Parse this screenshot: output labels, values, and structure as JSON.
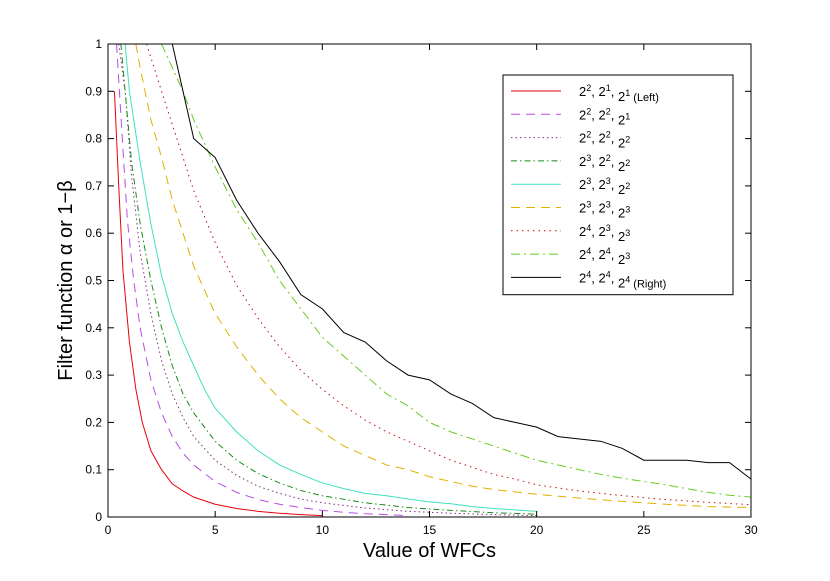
{
  "chart_data": {
    "type": "line",
    "title": "",
    "xlabel": "Value of WFCs",
    "ylabel": "Filter function α or 1−β",
    "xlim": [
      0,
      30
    ],
    "ylim": [
      0,
      1
    ],
    "x_ticks": [
      "0",
      "5",
      "10",
      "15",
      "20",
      "25",
      "30"
    ],
    "y_ticks": [
      "0",
      "0.1",
      "0.2",
      "0.3",
      "0.4",
      "0.5",
      "0.6",
      "0.7",
      "0.8",
      "0.9",
      "1"
    ],
    "grid": false,
    "legend_position": "top-right",
    "series": [
      {
        "name": "2^2, 2^1, 2^1 (Left)",
        "label_parts": [
          [
            "2",
            "2"
          ],
          [
            "2",
            "1"
          ],
          [
            "2",
            "1"
          ]
        ],
        "suffix": "(Left)",
        "color": "#e8000b",
        "dash": "",
        "points": [
          [
            0.3,
            0.9
          ],
          [
            0.5,
            0.7
          ],
          [
            0.7,
            0.52
          ],
          [
            1,
            0.37
          ],
          [
            1.3,
            0.27
          ],
          [
            1.6,
            0.2
          ],
          [
            2,
            0.14
          ],
          [
            2.5,
            0.1
          ],
          [
            3,
            0.07
          ],
          [
            3.5,
            0.055
          ],
          [
            4,
            0.042
          ],
          [
            5,
            0.027
          ],
          [
            6,
            0.018
          ],
          [
            7,
            0.012
          ],
          [
            8,
            0.008
          ],
          [
            9,
            0.005
          ],
          [
            10,
            0.003
          ]
        ]
      },
      {
        "name": "2^2, 2^2, 2^1",
        "label_parts": [
          [
            "2",
            "2"
          ],
          [
            "2",
            "2"
          ],
          [
            "2",
            "1"
          ]
        ],
        "suffix": "",
        "color": "#b84ee6",
        "dash": "9,6",
        "points": [
          [
            0.4,
            1.0
          ],
          [
            0.6,
            0.85
          ],
          [
            0.9,
            0.63
          ],
          [
            1.2,
            0.5
          ],
          [
            1.5,
            0.4
          ],
          [
            2,
            0.29
          ],
          [
            2.5,
            0.22
          ],
          [
            3,
            0.17
          ],
          [
            3.5,
            0.135
          ],
          [
            4,
            0.11
          ],
          [
            5,
            0.075
          ],
          [
            6,
            0.052
          ],
          [
            7,
            0.037
          ],
          [
            8,
            0.027
          ],
          [
            9,
            0.02
          ],
          [
            10,
            0.014
          ],
          [
            11,
            0.01
          ],
          [
            12,
            0.007
          ],
          [
            13,
            0.005
          ],
          [
            14,
            0.003
          ]
        ]
      },
      {
        "name": "2^2, 2^2, 2^2",
        "label_parts": [
          [
            "2",
            "2"
          ],
          [
            "2",
            "2"
          ],
          [
            "2",
            "2"
          ]
        ],
        "suffix": "",
        "color": "#7f2f7f",
        "dash": "1.5,3",
        "points": [
          [
            0.5,
            1.0
          ],
          [
            0.8,
            0.9
          ],
          [
            1.1,
            0.72
          ],
          [
            1.5,
            0.56
          ],
          [
            2,
            0.43
          ],
          [
            2.5,
            0.33
          ],
          [
            3,
            0.26
          ],
          [
            3.5,
            0.21
          ],
          [
            4,
            0.17
          ],
          [
            5,
            0.12
          ],
          [
            6,
            0.088
          ],
          [
            7,
            0.065
          ],
          [
            8,
            0.05
          ],
          [
            9,
            0.038
          ],
          [
            10,
            0.03
          ],
          [
            12,
            0.019
          ],
          [
            14,
            0.012
          ],
          [
            16,
            0.008
          ],
          [
            18,
            0.005
          ],
          [
            20,
            0.003
          ]
        ]
      },
      {
        "name": "2^3, 2^2, 2^2",
        "label_parts": [
          [
            "2",
            "3"
          ],
          [
            "2",
            "2"
          ],
          [
            "2",
            "2"
          ]
        ],
        "suffix": "",
        "color": "#1a8a1a",
        "dash": "6,3,1.5,3",
        "points": [
          [
            0.6,
            1.0
          ],
          [
            0.8,
            0.9
          ],
          [
            1.1,
            0.75
          ],
          [
            1.5,
            0.62
          ],
          [
            2,
            0.5
          ],
          [
            2.5,
            0.4
          ],
          [
            3,
            0.32
          ],
          [
            3.5,
            0.26
          ],
          [
            4,
            0.22
          ],
          [
            5,
            0.16
          ],
          [
            6,
            0.12
          ],
          [
            7,
            0.092
          ],
          [
            8,
            0.072
          ],
          [
            9,
            0.056
          ],
          [
            10,
            0.045
          ],
          [
            12,
            0.03
          ],
          [
            14,
            0.02
          ],
          [
            16,
            0.014
          ],
          [
            18,
            0.009
          ],
          [
            20,
            0.006
          ]
        ]
      },
      {
        "name": "2^3, 2^3, 2^2",
        "label_parts": [
          [
            "2",
            "3"
          ],
          [
            "2",
            "3"
          ],
          [
            "2",
            "2"
          ]
        ],
        "suffix": "",
        "color": "#40e0c0",
        "dash": "",
        "points": [
          [
            0.8,
            1.0
          ],
          [
            1,
            0.9
          ],
          [
            1.5,
            0.75
          ],
          [
            2,
            0.62
          ],
          [
            2.5,
            0.51
          ],
          [
            3,
            0.43
          ],
          [
            3.5,
            0.37
          ],
          [
            4,
            0.32
          ],
          [
            4.5,
            0.27
          ],
          [
            5,
            0.23
          ],
          [
            6,
            0.18
          ],
          [
            7,
            0.14
          ],
          [
            8,
            0.11
          ],
          [
            9,
            0.09
          ],
          [
            10,
            0.072
          ],
          [
            11,
            0.06
          ],
          [
            12,
            0.05
          ],
          [
            13,
            0.045
          ],
          [
            14,
            0.038
          ],
          [
            15,
            0.032
          ],
          [
            16,
            0.028
          ],
          [
            17,
            0.022
          ],
          [
            18,
            0.018
          ],
          [
            19,
            0.015
          ],
          [
            20,
            0.012
          ]
        ]
      },
      {
        "name": "2^3, 2^3, 2^3",
        "label_parts": [
          [
            "2",
            "3"
          ],
          [
            "2",
            "3"
          ],
          [
            "2",
            "3"
          ]
        ],
        "suffix": "",
        "color": "#e0b000",
        "dash": "9,6",
        "points": [
          [
            1.3,
            1.0
          ],
          [
            1.5,
            0.95
          ],
          [
            2,
            0.84
          ],
          [
            2.5,
            0.76
          ],
          [
            3,
            0.67
          ],
          [
            3.5,
            0.6
          ],
          [
            4,
            0.53
          ],
          [
            5,
            0.43
          ],
          [
            6,
            0.36
          ],
          [
            7,
            0.3
          ],
          [
            8,
            0.25
          ],
          [
            9,
            0.21
          ],
          [
            10,
            0.18
          ],
          [
            11,
            0.15
          ],
          [
            12,
            0.13
          ],
          [
            13,
            0.11
          ],
          [
            14,
            0.1
          ],
          [
            15,
            0.085
          ],
          [
            16,
            0.075
          ],
          [
            17,
            0.065
          ],
          [
            18,
            0.058
          ],
          [
            20,
            0.048
          ],
          [
            22,
            0.04
          ],
          [
            24,
            0.033
          ],
          [
            26,
            0.027
          ],
          [
            28,
            0.022
          ],
          [
            30,
            0.02
          ]
        ]
      },
      {
        "name": "2^4, 2^3, 2^3",
        "label_parts": [
          [
            "2",
            "4"
          ],
          [
            "2",
            "3"
          ],
          [
            "2",
            "3"
          ]
        ],
        "suffix": "",
        "color": "#c01010",
        "dash": "1.5,4",
        "points": [
          [
            1.8,
            1.0
          ],
          [
            2.5,
            0.9
          ],
          [
            3,
            0.83
          ],
          [
            3.5,
            0.76
          ],
          [
            4,
            0.69
          ],
          [
            5,
            0.58
          ],
          [
            6,
            0.49
          ],
          [
            7,
            0.42
          ],
          [
            8,
            0.36
          ],
          [
            9,
            0.31
          ],
          [
            10,
            0.27
          ],
          [
            11,
            0.235
          ],
          [
            12,
            0.205
          ],
          [
            13,
            0.18
          ],
          [
            14,
            0.16
          ],
          [
            15,
            0.14
          ],
          [
            16,
            0.12
          ],
          [
            17,
            0.105
          ],
          [
            18,
            0.09
          ],
          [
            19,
            0.08
          ],
          [
            20,
            0.068
          ],
          [
            22,
            0.055
          ],
          [
            24,
            0.045
          ],
          [
            26,
            0.037
          ],
          [
            28,
            0.031
          ],
          [
            30,
            0.026
          ]
        ]
      },
      {
        "name": "2^4, 2^4, 2^3",
        "label_parts": [
          [
            "2",
            "4"
          ],
          [
            "2",
            "4"
          ],
          [
            "2",
            "3"
          ]
        ],
        "suffix": "",
        "color": "#66cc22",
        "dash": "9,4,2,4",
        "points": [
          [
            2.5,
            1.0
          ],
          [
            3,
            0.95
          ],
          [
            3.5,
            0.9
          ],
          [
            4,
            0.84
          ],
          [
            5,
            0.74
          ],
          [
            6,
            0.65
          ],
          [
            7,
            0.58
          ],
          [
            8,
            0.5
          ],
          [
            9,
            0.44
          ],
          [
            10,
            0.38
          ],
          [
            11,
            0.34
          ],
          [
            12,
            0.3
          ],
          [
            13,
            0.26
          ],
          [
            14,
            0.235
          ],
          [
            15,
            0.2
          ],
          [
            16,
            0.18
          ],
          [
            17,
            0.165
          ],
          [
            18,
            0.15
          ],
          [
            19,
            0.135
          ],
          [
            20,
            0.12
          ],
          [
            21,
            0.11
          ],
          [
            22,
            0.1
          ],
          [
            23,
            0.09
          ],
          [
            24,
            0.082
          ],
          [
            25,
            0.075
          ],
          [
            26,
            0.068
          ],
          [
            27,
            0.06
          ],
          [
            28,
            0.052
          ],
          [
            29,
            0.046
          ],
          [
            30,
            0.042
          ]
        ]
      },
      {
        "name": "2^4, 2^4, 2^4 (Right)",
        "label_parts": [
          [
            "2",
            "4"
          ],
          [
            "2",
            "4"
          ],
          [
            "2",
            "4"
          ]
        ],
        "suffix": "(Right)",
        "color": "#000000",
        "dash": "",
        "points": [
          [
            3,
            1.0
          ],
          [
            4,
            0.8
          ],
          [
            5,
            0.76
          ],
          [
            6,
            0.67
          ],
          [
            7,
            0.6
          ],
          [
            8,
            0.54
          ],
          [
            9,
            0.47
          ],
          [
            10,
            0.44
          ],
          [
            11,
            0.39
          ],
          [
            12,
            0.37
          ],
          [
            13,
            0.33
          ],
          [
            14,
            0.3
          ],
          [
            15,
            0.29
          ],
          [
            16,
            0.26
          ],
          [
            17,
            0.24
          ],
          [
            18,
            0.21
          ],
          [
            19,
            0.2
          ],
          [
            20,
            0.19
          ],
          [
            21,
            0.17
          ],
          [
            22,
            0.165
          ],
          [
            23,
            0.16
          ],
          [
            24,
            0.145
          ],
          [
            25,
            0.12
          ],
          [
            26,
            0.12
          ],
          [
            27,
            0.12
          ],
          [
            28,
            0.115
          ],
          [
            29,
            0.115
          ],
          [
            30,
            0.08
          ]
        ]
      }
    ]
  }
}
